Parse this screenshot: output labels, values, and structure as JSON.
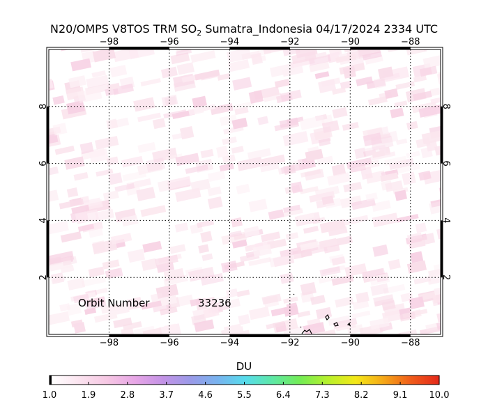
{
  "title": {
    "prefix": "N20/OMPS V8TOS TRM SO",
    "subscript": "2",
    "suffix": " Sumatra_Indonesia 04/17/2024 2334 UTC"
  },
  "map": {
    "lon_range": [
      -100,
      -87
    ],
    "lat_range": [
      0,
      10
    ],
    "lon_ticks": [
      -98,
      -96,
      -94,
      -92,
      -90,
      -88
    ],
    "lat_ticks": [
      2,
      4,
      6,
      8
    ],
    "lon_tick_labels": [
      "−98",
      "−96",
      "−94",
      "−92",
      "−90",
      "−88"
    ],
    "lat_tick_labels": [
      "2",
      "4",
      "6",
      "8"
    ],
    "gridlines": "dotted",
    "background_field_color": "#fbe4ee",
    "coastline_color": "#000000"
  },
  "annotation": {
    "label": "Orbit Number",
    "value": "33236"
  },
  "colorbar": {
    "title": "DU",
    "tick_labels": [
      "1.0",
      "1.9",
      "2.8",
      "3.7",
      "4.6",
      "5.5",
      "6.4",
      "7.3",
      "8.2",
      "9.1",
      "10.0"
    ],
    "colors": [
      "#ffffff",
      "#fbe3ef",
      "#f6c7e3",
      "#e7a6e6",
      "#c493e6",
      "#9b9ae8",
      "#78b3ef",
      "#57dcec",
      "#5ee8a4",
      "#74ec54",
      "#b8f02c",
      "#f4e818",
      "#f5a818",
      "#f05c1a",
      "#e52a1a"
    ]
  }
}
